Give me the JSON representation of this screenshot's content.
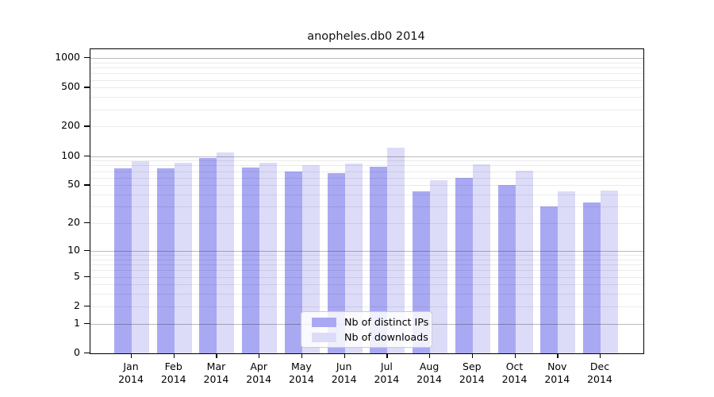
{
  "title": "anopheles.db0 2014",
  "chart_data": {
    "type": "bar",
    "title": "anopheles.db0 2014",
    "categories": [
      "Jan 2014",
      "Feb 2014",
      "Mar 2014",
      "Apr 2014",
      "May 2014",
      "Jun 2014",
      "Jul 2014",
      "Aug 2014",
      "Sep 2014",
      "Oct 2014",
      "Nov 2014",
      "Dec 2014"
    ],
    "series": [
      {
        "name": "Nb of distinct IPs",
        "color": "#a9a9f3",
        "values": [
          75,
          75,
          96,
          76,
          69,
          67,
          77,
          43,
          60,
          50,
          30,
          33
        ]
      },
      {
        "name": "Nb of downloads",
        "color": "#dcdcf8",
        "values": [
          89,
          86,
          108,
          86,
          80,
          84,
          122,
          56,
          82,
          70,
          43,
          44
        ]
      }
    ],
    "xlabel": "",
    "ylabel": "",
    "yscale": "log10(value+1)",
    "yticks": [
      0,
      1,
      2,
      5,
      10,
      20,
      50,
      100,
      200,
      500,
      1000
    ],
    "ylim": [
      0,
      1227
    ],
    "grid": "on",
    "legend_position": "lower center"
  },
  "colors": {
    "bar_ips": "#a9a9f3",
    "bar_downloads": "#dcdcf8",
    "grid_major": "rgba(0,0,0,0.27)",
    "grid_minor": "rgba(0,0,0,0.08)",
    "spine": "#000000",
    "background": "#ffffff"
  }
}
